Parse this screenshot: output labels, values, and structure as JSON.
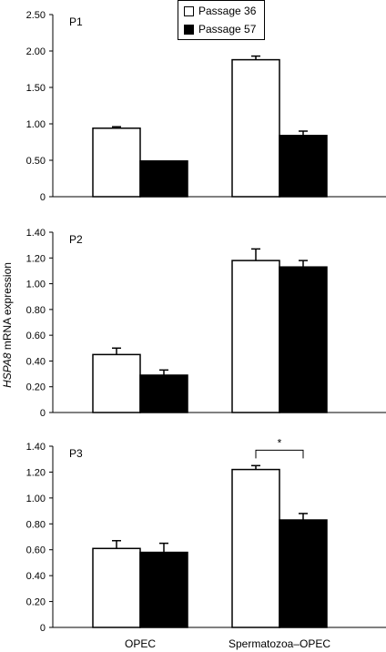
{
  "chart_data": {
    "type": "bar",
    "categories": [
      "OPEC",
      "Spermatozoa–OPEC"
    ],
    "ylabel_gene": "HSPA8",
    "ylabel_rest": " mRNA expression",
    "legend": [
      {
        "label": "Passage 36",
        "color": "#ffffff"
      },
      {
        "label": "Passage 57",
        "color": "#000000"
      }
    ],
    "legend_position": "top-center",
    "panels": [
      {
        "label": "P1",
        "ylim": [
          0,
          2.5
        ],
        "ticks": [
          "0",
          "0.50",
          "1.00",
          "1.50",
          "2.00",
          "2.50"
        ],
        "tick_values": [
          0,
          0.5,
          1.0,
          1.5,
          2.0,
          2.5
        ],
        "series": [
          {
            "name": "Passage 36",
            "values": [
              0.94,
              1.88
            ],
            "errors": [
              0.02,
              0.05
            ]
          },
          {
            "name": "Passage 57",
            "values": [
              0.49,
              0.84
            ],
            "errors": [
              0.0,
              0.06
            ]
          }
        ]
      },
      {
        "label": "P2",
        "ylim": [
          0,
          1.4
        ],
        "ticks": [
          "0",
          "0.20",
          "0.40",
          "0.60",
          "0.80",
          "1.00",
          "1.20",
          "1.40"
        ],
        "tick_values": [
          0,
          0.2,
          0.4,
          0.6,
          0.8,
          1.0,
          1.2,
          1.4
        ],
        "series": [
          {
            "name": "Passage 36",
            "values": [
              0.45,
              1.18
            ],
            "errors": [
              0.05,
              0.09
            ]
          },
          {
            "name": "Passage 57",
            "values": [
              0.29,
              1.13
            ],
            "errors": [
              0.04,
              0.05
            ]
          }
        ]
      },
      {
        "label": "P3",
        "ylim": [
          0,
          1.4
        ],
        "ticks": [
          "0",
          "0.20",
          "0.40",
          "0.60",
          "0.80",
          "1.00",
          "1.20",
          "1.40"
        ],
        "tick_values": [
          0,
          0.2,
          0.4,
          0.6,
          0.8,
          1.0,
          1.2,
          1.4
        ],
        "series": [
          {
            "name": "Passage 36",
            "values": [
              0.61,
              1.22
            ],
            "errors": [
              0.06,
              0.03
            ]
          },
          {
            "name": "Passage 57",
            "values": [
              0.58,
              0.83
            ],
            "errors": [
              0.07,
              0.05
            ]
          }
        ],
        "significance": {
          "category_index": 1,
          "label": "*"
        }
      }
    ]
  }
}
